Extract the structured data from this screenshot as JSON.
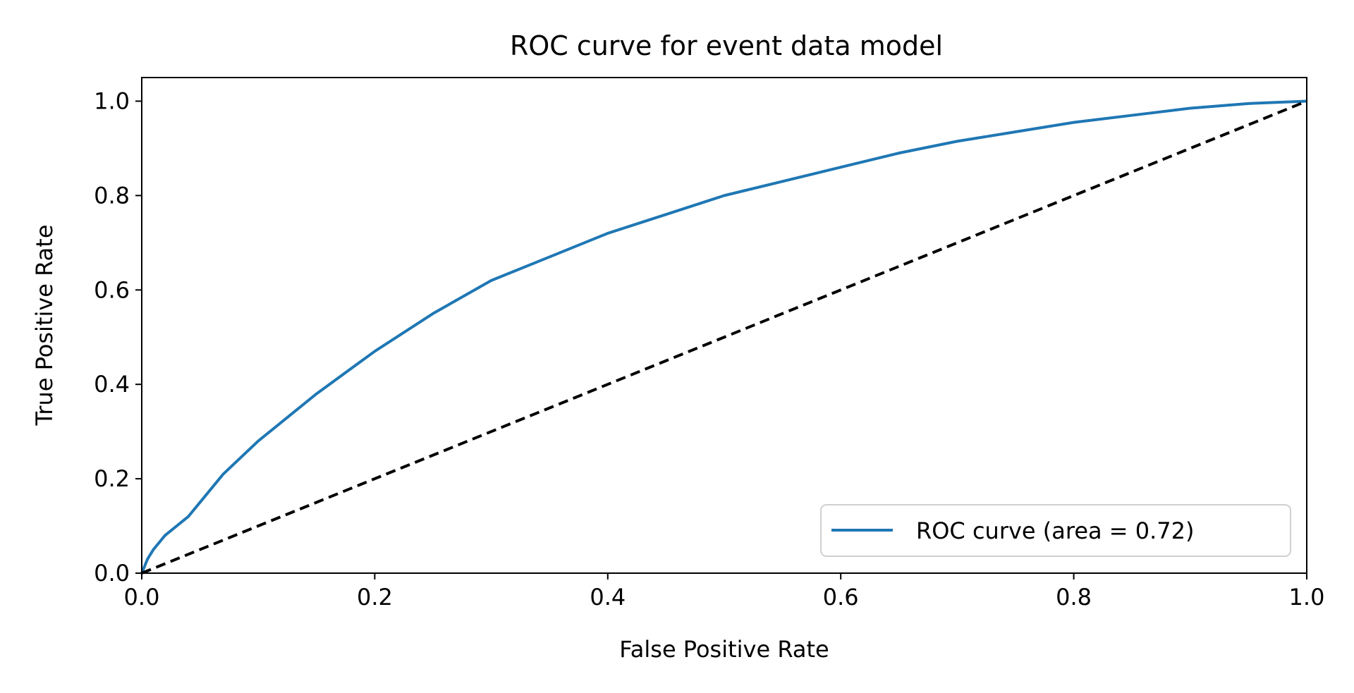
{
  "chart_data": {
    "type": "line",
    "title": "ROC curve for event data model",
    "xlabel": "False Positive Rate",
    "ylabel": "True Positive Rate",
    "xlim": [
      0.0,
      1.0
    ],
    "ylim": [
      0.0,
      1.05
    ],
    "x_ticks": [
      0.0,
      0.2,
      0.4,
      0.6,
      0.8,
      1.0
    ],
    "x_tick_labels": [
      "0.0",
      "0.2",
      "0.4",
      "0.6",
      "0.8",
      "1.0"
    ],
    "y_ticks": [
      0.0,
      0.2,
      0.4,
      0.6,
      0.8,
      1.0
    ],
    "y_tick_labels": [
      "0.0",
      "0.2",
      "0.4",
      "0.6",
      "0.8",
      "1.0"
    ],
    "grid": false,
    "legend_position": "lower-right",
    "series": [
      {
        "name": "ROC curve (area = 0.72)",
        "color": "#1f77b4",
        "style": "solid",
        "x": [
          0.0,
          0.005,
          0.01,
          0.02,
          0.03,
          0.04,
          0.05,
          0.07,
          0.1,
          0.15,
          0.2,
          0.25,
          0.3,
          0.35,
          0.4,
          0.45,
          0.5,
          0.55,
          0.6,
          0.65,
          0.7,
          0.75,
          0.8,
          0.85,
          0.9,
          0.95,
          1.0
        ],
        "y": [
          0.0,
          0.03,
          0.05,
          0.08,
          0.1,
          0.12,
          0.15,
          0.21,
          0.28,
          0.38,
          0.47,
          0.55,
          0.62,
          0.67,
          0.72,
          0.76,
          0.8,
          0.83,
          0.86,
          0.89,
          0.915,
          0.935,
          0.955,
          0.97,
          0.985,
          0.995,
          1.0
        ]
      },
      {
        "name": "",
        "color": "#000000",
        "style": "dashed",
        "x": [
          0.0,
          1.0
        ],
        "y": [
          0.0,
          1.0
        ]
      }
    ],
    "legend": {
      "entries": [
        "ROC curve (area = 0.72)"
      ]
    }
  }
}
